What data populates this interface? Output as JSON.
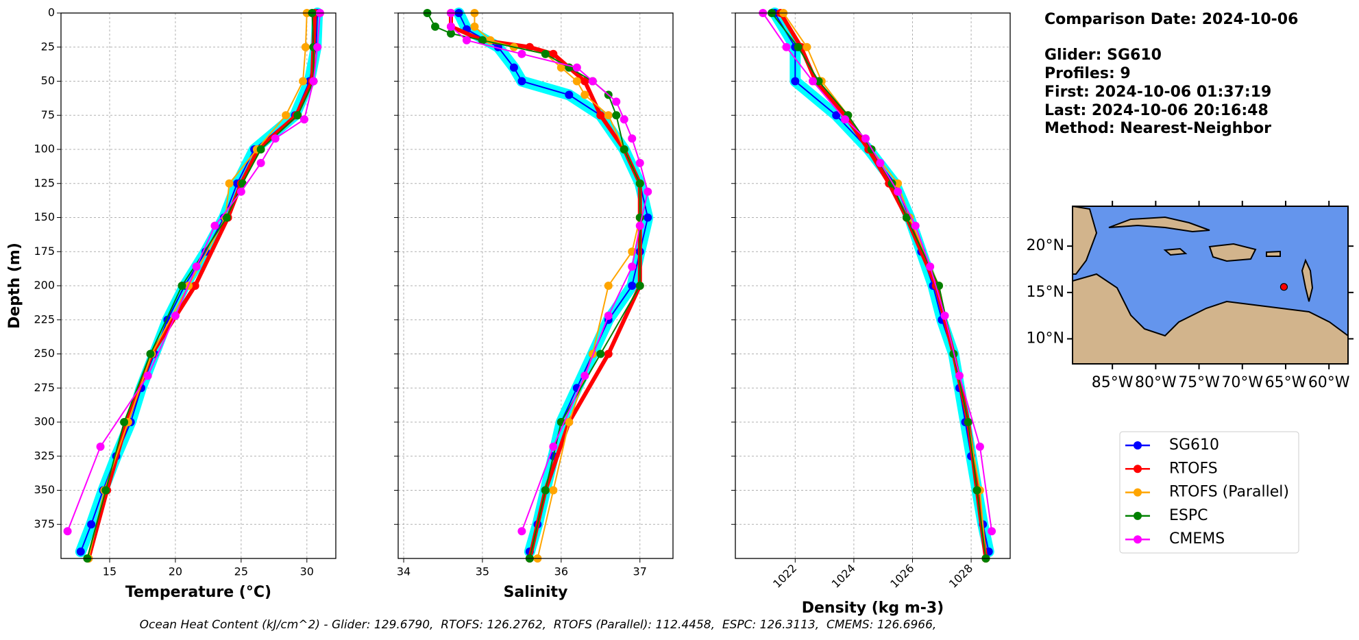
{
  "chart_data": [
    {
      "type": "line",
      "x_label": "Temperature (°C)",
      "y_label": "Depth (m)",
      "xlim": [
        11.3,
        32.2
      ],
      "xticks": [
        15,
        20,
        25,
        30
      ],
      "ylim": [
        0,
        400
      ],
      "y_inverted": true,
      "yticks": [
        0,
        25,
        50,
        75,
        100,
        125,
        150,
        175,
        200,
        225,
        250,
        275,
        300,
        325,
        350,
        375
      ],
      "ytick_labels": true,
      "xtick_rotation": 0,
      "grid": true,
      "series": [
        {
          "name": "SG610",
          "color": "#0000ff",
          "halo_color": "#00ffff",
          "linewidth": 2,
          "y": [
            0,
            25,
            50,
            75,
            100,
            125,
            150,
            175,
            200,
            225,
            250,
            275,
            300,
            325,
            350,
            375,
            395
          ],
          "x": [
            30.8,
            30.7,
            30.2,
            29.1,
            26.0,
            24.7,
            23.7,
            22.3,
            20.7,
            19.4,
            18.4,
            17.4,
            16.6,
            15.5,
            14.5,
            13.6,
            12.8
          ]
        },
        {
          "name": "RTOFS",
          "color": "#ff0000",
          "linewidth": 6,
          "y": [
            0,
            25,
            50,
            75,
            100,
            125,
            150,
            200,
            250,
            300,
            350,
            400
          ],
          "x": [
            30.6,
            30.5,
            30.4,
            29.2,
            26.3,
            25.0,
            24.0,
            21.5,
            18.2,
            16.3,
            14.8,
            13.4
          ]
        },
        {
          "name": "RTOFS (Parallel)",
          "color": "#ffa500",
          "linewidth": 2,
          "y": [
            0,
            25,
            50,
            75,
            100,
            125,
            150,
            200,
            250,
            300,
            350,
            400
          ],
          "x": [
            30.0,
            29.9,
            29.7,
            28.4,
            26.2,
            24.1,
            23.8,
            21.0,
            18.2,
            16.4,
            14.6,
            13.4
          ]
        },
        {
          "name": "ESPC",
          "color": "#008000",
          "linewidth": 2,
          "y": [
            0,
            25,
            50,
            75,
            100,
            125,
            150,
            200,
            250,
            300,
            350,
            400
          ],
          "x": [
            30.4,
            30.5,
            30.5,
            29.3,
            26.5,
            25.1,
            23.9,
            20.5,
            18.1,
            16.1,
            14.7,
            13.3
          ]
        },
        {
          "name": "CMEMS",
          "color": "#ff00ff",
          "linewidth": 2,
          "y": [
            0,
            25,
            50,
            78,
            92,
            110,
            131,
            156,
            186,
            222,
            266,
            318,
            380
          ],
          "x": [
            31.0,
            30.8,
            30.5,
            29.8,
            27.6,
            26.5,
            25.0,
            23.0,
            21.6,
            20.0,
            17.9,
            14.3,
            11.8
          ]
        }
      ]
    },
    {
      "type": "line",
      "x_label": "Salinity",
      "xlim": [
        33.93,
        37.42
      ],
      "xticks": [
        34,
        35,
        36,
        37
      ],
      "ylim": [
        0,
        400
      ],
      "y_inverted": true,
      "yticks": [
        0,
        25,
        50,
        75,
        100,
        125,
        150,
        175,
        200,
        225,
        250,
        275,
        300,
        325,
        350,
        375
      ],
      "ytick_labels": false,
      "xtick_rotation": 0,
      "grid": true,
      "series": [
        {
          "name": "SG610",
          "color": "#0000ff",
          "halo_color": "#00ffff",
          "linewidth": 2,
          "y": [
            0,
            12,
            25,
            40,
            50,
            60,
            75,
            100,
            125,
            150,
            175,
            200,
            225,
            250,
            275,
            300,
            325,
            350,
            375,
            395
          ],
          "x": [
            34.7,
            34.8,
            35.2,
            35.4,
            35.5,
            36.1,
            36.5,
            36.8,
            37.0,
            37.1,
            37.0,
            36.9,
            36.6,
            36.4,
            36.2,
            36.0,
            35.9,
            35.8,
            35.7,
            35.6
          ]
        },
        {
          "name": "RTOFS",
          "color": "#ff0000",
          "linewidth": 6,
          "y": [
            0,
            10,
            20,
            25,
            30,
            40,
            50,
            75,
            100,
            125,
            150,
            200,
            250,
            300,
            350,
            400
          ],
          "x": [
            34.6,
            34.6,
            35.0,
            35.6,
            35.9,
            36.1,
            36.3,
            36.5,
            36.8,
            37.0,
            37.0,
            37.0,
            36.6,
            36.1,
            35.8,
            35.6
          ]
        },
        {
          "name": "RTOFS (Parallel)",
          "color": "#ffa500",
          "linewidth": 2,
          "y": [
            0,
            10,
            20,
            25,
            30,
            40,
            50,
            60,
            75,
            100,
            125,
            150,
            175,
            200,
            250,
            300,
            350,
            400
          ],
          "x": [
            34.9,
            34.9,
            35.1,
            35.4,
            35.8,
            36.0,
            36.2,
            36.3,
            36.6,
            36.8,
            37.0,
            37.0,
            36.9,
            36.6,
            36.4,
            36.1,
            35.9,
            35.7
          ]
        },
        {
          "name": "ESPC",
          "color": "#008000",
          "linewidth": 2,
          "y": [
            0,
            10,
            15,
            20,
            30,
            40,
            50,
            60,
            75,
            100,
            125,
            150,
            200,
            250,
            300,
            350,
            400
          ],
          "x": [
            34.3,
            34.4,
            34.6,
            35.0,
            35.8,
            36.1,
            36.4,
            36.6,
            36.7,
            36.8,
            37.0,
            37.0,
            37.0,
            36.5,
            36.0,
            35.8,
            35.6
          ]
        },
        {
          "name": "CMEMS",
          "color": "#ff00ff",
          "linewidth": 2,
          "y": [
            0,
            10,
            20,
            30,
            40,
            50,
            65,
            78,
            92,
            110,
            131,
            156,
            186,
            222,
            266,
            318,
            380
          ],
          "x": [
            34.6,
            34.6,
            34.8,
            35.5,
            36.2,
            36.4,
            36.7,
            36.8,
            36.9,
            37.0,
            37.1,
            37.0,
            36.9,
            36.6,
            36.3,
            35.9,
            35.5
          ]
        }
      ]
    },
    {
      "type": "line",
      "x_label": "Density (kg m-3)",
      "xlim": [
        1019.96,
        1029.33
      ],
      "xticks": [
        1022,
        1024,
        1026,
        1028
      ],
      "ylim": [
        0,
        400
      ],
      "y_inverted": true,
      "yticks": [
        0,
        25,
        50,
        75,
        100,
        125,
        150,
        175,
        200,
        225,
        250,
        275,
        300,
        325,
        350,
        375
      ],
      "ytick_labels": false,
      "xtick_rotation": 45,
      "grid": true,
      "series": [
        {
          "name": "SG610",
          "color": "#0000ff",
          "halo_color": "#00ffff",
          "linewidth": 2,
          "y": [
            0,
            25,
            50,
            75,
            100,
            125,
            150,
            175,
            200,
            225,
            250,
            275,
            300,
            325,
            350,
            375,
            395
          ],
          "x": [
            1021.3,
            1022.0,
            1022.0,
            1023.4,
            1024.5,
            1025.4,
            1025.9,
            1026.3,
            1026.7,
            1027.0,
            1027.4,
            1027.6,
            1027.8,
            1028.0,
            1028.2,
            1028.4,
            1028.6
          ]
        },
        {
          "name": "RTOFS",
          "color": "#ff0000",
          "linewidth": 6,
          "y": [
            0,
            25,
            50,
            75,
            100,
            125,
            150,
            200,
            250,
            300,
            350,
            400
          ],
          "x": [
            1021.5,
            1022.2,
            1022.7,
            1023.7,
            1024.5,
            1025.2,
            1025.8,
            1026.8,
            1027.4,
            1027.9,
            1028.2,
            1028.5
          ]
        },
        {
          "name": "RTOFS (Parallel)",
          "color": "#ffa500",
          "linewidth": 2,
          "y": [
            0,
            25,
            50,
            75,
            100,
            125,
            150,
            200,
            250,
            300,
            350,
            400
          ],
          "x": [
            1021.6,
            1022.4,
            1022.9,
            1023.8,
            1024.6,
            1025.5,
            1025.9,
            1026.9,
            1027.4,
            1027.9,
            1028.3,
            1028.5
          ]
        },
        {
          "name": "ESPC",
          "color": "#008000",
          "linewidth": 2,
          "y": [
            0,
            25,
            50,
            75,
            100,
            125,
            150,
            200,
            250,
            300,
            350,
            400
          ],
          "x": [
            1021.2,
            1022.1,
            1022.8,
            1023.8,
            1024.6,
            1025.3,
            1025.8,
            1026.9,
            1027.4,
            1027.9,
            1028.2,
            1028.5
          ]
        },
        {
          "name": "CMEMS",
          "color": "#ff00ff",
          "linewidth": 2,
          "y": [
            0,
            25,
            50,
            78,
            92,
            110,
            131,
            156,
            186,
            222,
            266,
            318,
            380
          ],
          "x": [
            1020.9,
            1021.7,
            1022.6,
            1023.7,
            1024.4,
            1024.9,
            1025.5,
            1026.1,
            1026.6,
            1027.1,
            1027.6,
            1028.3,
            1028.7
          ]
        }
      ]
    },
    {
      "type": "map",
      "xlim": [
        -89.6,
        -57.8
      ],
      "ylim": [
        7.3,
        24.3
      ],
      "xticks": [
        {
          "value": -85,
          "label": "85°W"
        },
        {
          "value": -80,
          "label": "80°W"
        },
        {
          "value": -75,
          "label": "75°W"
        },
        {
          "value": -70,
          "label": "70°W"
        },
        {
          "value": -65,
          "label": "65°W"
        },
        {
          "value": -60,
          "label": "60°W"
        }
      ],
      "yticks": [
        {
          "value": 10,
          "label": "10°N"
        },
        {
          "value": 15,
          "label": "15°N"
        },
        {
          "value": 20,
          "label": "20°N"
        }
      ],
      "sea_color": "#6495ed",
      "points": {
        "color": "#ff0000",
        "x": [
          -65.2
        ],
        "y": [
          15.6
        ]
      }
    }
  ],
  "info_lines": [
    "Comparison Date: 2024-10-06",
    "Glider: SG610",
    "Profiles: 9",
    "First: 2024-10-06 01:37:19",
    "Last: 2024-10-06 20:16:48",
    "Method: Nearest-Neighbor"
  ],
  "footer": "Ocean Heat Content (kJ/cm^2) - Glider: 129.6790,  RTOFS: 126.2762,  RTOFS (Parallel): 112.4458,  ESPC: 126.3113,  CMEMS: 126.6966,"
}
